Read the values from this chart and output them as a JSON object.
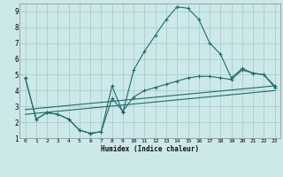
{
  "xlabel": "Humidex (Indice chaleur)",
  "xlim": [
    -0.5,
    23.5
  ],
  "ylim": [
    1,
    9.5
  ],
  "xticks": [
    0,
    1,
    2,
    3,
    4,
    5,
    6,
    7,
    8,
    9,
    10,
    11,
    12,
    13,
    14,
    15,
    16,
    17,
    18,
    19,
    20,
    21,
    22,
    23
  ],
  "yticks": [
    1,
    2,
    3,
    4,
    5,
    6,
    7,
    8,
    9
  ],
  "bg_color": "#cde8e8",
  "grid_color": "#a8cece",
  "line_color": "#1e6b6b",
  "line1_x": [
    0,
    1,
    2,
    3,
    4,
    5,
    6,
    7,
    8,
    9,
    10,
    11,
    12,
    13,
    14,
    15,
    16,
    17,
    18,
    19,
    20,
    21,
    22,
    23
  ],
  "line1_y": [
    4.8,
    2.2,
    2.6,
    2.5,
    2.2,
    1.5,
    1.3,
    1.4,
    4.3,
    2.6,
    5.3,
    6.5,
    7.5,
    8.5,
    9.3,
    9.2,
    8.5,
    7.0,
    6.3,
    4.8,
    5.4,
    5.1,
    5.0,
    4.3
  ],
  "line2_x": [
    0,
    1,
    2,
    3,
    4,
    5,
    6,
    7,
    8,
    9,
    10,
    11,
    12,
    13,
    14,
    15,
    16,
    17,
    18,
    19,
    20,
    21,
    22,
    23
  ],
  "line2_y": [
    4.8,
    2.2,
    2.6,
    2.5,
    2.2,
    1.5,
    1.3,
    1.4,
    3.5,
    2.7,
    3.6,
    4.0,
    4.2,
    4.4,
    4.6,
    4.8,
    4.9,
    4.9,
    4.8,
    4.7,
    5.3,
    5.1,
    5.0,
    4.2
  ],
  "line3_x": [
    0,
    23
  ],
  "line3_y": [
    2.8,
    4.3
  ],
  "line4_x": [
    0,
    23
  ],
  "line4_y": [
    2.5,
    4.0
  ]
}
